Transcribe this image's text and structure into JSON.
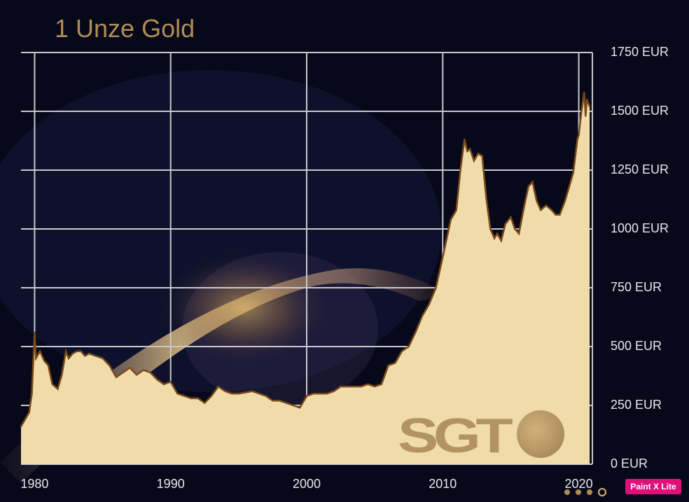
{
  "title": "1 Unze Gold",
  "colors": {
    "fill": "#f0dcaa",
    "edge": "#7a4a18",
    "grid": "#c8c8cc",
    "title": "#b08c55"
  },
  "logo": {
    "text": "SGT",
    "icon": "globe-icon"
  },
  "badge": "Paint X Lite",
  "chart_data": {
    "type": "area",
    "title": "1 Unze Gold",
    "xlabel": "",
    "ylabel": "",
    "xlim": [
      1979,
      2021
    ],
    "ylim": [
      0,
      1750
    ],
    "grid": true,
    "y_ticks": [
      "0 EUR",
      "250 EUR",
      "500 EUR",
      "750 EUR",
      "1000 EUR",
      "1250 EUR",
      "1500 EUR",
      "1750 EUR"
    ],
    "y_tick_values": [
      0,
      250,
      500,
      750,
      1000,
      1250,
      1500,
      1750
    ],
    "x_ticks": [
      "1980",
      "1990",
      "2000",
      "2010",
      "2020"
    ],
    "x_tick_values": [
      1980,
      1990,
      2000,
      2010,
      2020
    ],
    "x": [
      1979.0,
      1979.3,
      1979.6,
      1979.8,
      1980.0,
      1980.1,
      1980.4,
      1980.7,
      1981.0,
      1981.3,
      1981.7,
      1982.0,
      1982.3,
      1982.5,
      1982.8,
      1983.1,
      1983.4,
      1983.7,
      1984.0,
      1984.5,
      1985.0,
      1985.5,
      1986.0,
      1986.5,
      1987.0,
      1987.5,
      1988.0,
      1988.5,
      1989.0,
      1989.5,
      1990.0,
      1990.5,
      1991.0,
      1991.5,
      1992.0,
      1992.5,
      1993.0,
      1993.5,
      1994.0,
      1994.5,
      1995.0,
      1996.0,
      1997.0,
      1997.5,
      1998.0,
      1998.5,
      1999.0,
      1999.5,
      2000.0,
      2000.5,
      2001.0,
      2001.5,
      2002.0,
      2002.5,
      2003.0,
      2003.5,
      2004.0,
      2004.5,
      2005.0,
      2005.5,
      2006.0,
      2006.5,
      2007.0,
      2007.5,
      2008.0,
      2008.5,
      2009.0,
      2009.5,
      2010.0,
      2010.3,
      2010.6,
      2011.0,
      2011.3,
      2011.6,
      2011.8,
      2012.0,
      2012.3,
      2012.6,
      2012.9,
      2013.2,
      2013.5,
      2013.8,
      2014.0,
      2014.3,
      2014.6,
      2015.0,
      2015.3,
      2015.6,
      2016.0,
      2016.3,
      2016.6,
      2016.9,
      2017.2,
      2017.6,
      2018.0,
      2018.3,
      2018.6,
      2019.0,
      2019.3,
      2019.6,
      2019.9,
      2020.0,
      2020.2,
      2020.4,
      2020.5,
      2020.6,
      2020.8
    ],
    "values": [
      160,
      190,
      220,
      300,
      560,
      450,
      480,
      440,
      420,
      340,
      320,
      380,
      480,
      450,
      470,
      480,
      480,
      460,
      470,
      460,
      450,
      420,
      370,
      390,
      410,
      380,
      400,
      390,
      360,
      340,
      350,
      300,
      290,
      280,
      280,
      260,
      290,
      330,
      310,
      300,
      300,
      310,
      290,
      270,
      270,
      260,
      250,
      240,
      290,
      300,
      300,
      300,
      310,
      330,
      330,
      330,
      330,
      340,
      330,
      340,
      420,
      430,
      480,
      500,
      560,
      630,
      680,
      750,
      880,
      960,
      1040,
      1080,
      1250,
      1380,
      1330,
      1340,
      1290,
      1320,
      1310,
      1130,
      1000,
      960,
      980,
      950,
      1020,
      1050,
      1000,
      980,
      1100,
      1180,
      1200,
      1120,
      1080,
      1100,
      1080,
      1060,
      1060,
      1120,
      1180,
      1240,
      1380,
      1400,
      1500,
      1580,
      1480,
      1550,
      1520
    ]
  }
}
